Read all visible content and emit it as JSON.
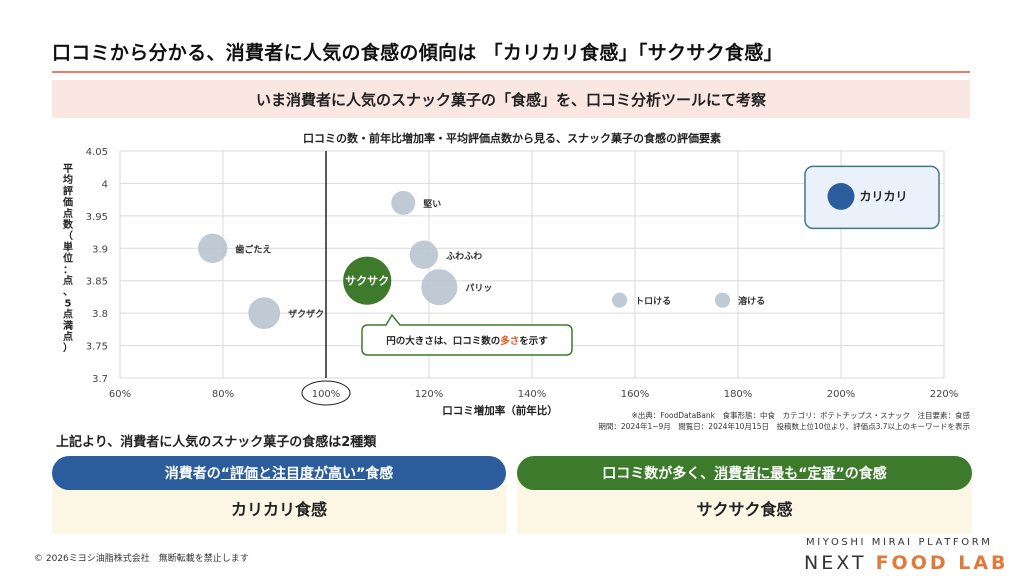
{
  "header": {
    "title": "口コミから分かる、消費者に人気の食感の傾向は 「カリカリ食感」「サクサク食感」",
    "banner": "いま消費者に人気のスナック菓子の「食感」を、口コミ分析ツールにて考察"
  },
  "chart_data": {
    "type": "scatter",
    "title": "口コミの数・前年比増加率・平均評価点数から見る、スナック菓子の食感の評価要素",
    "xlabel": "口コミ増加率（前年比）",
    "ylabel": "平均評価点数（単位：点、5点満点）",
    "xlim": [
      60,
      220
    ],
    "ylim": [
      3.7,
      4.05
    ],
    "xticks": [
      "60%",
      "80%",
      "100%",
      "120%",
      "140%",
      "160%",
      "180%",
      "200%",
      "220%"
    ],
    "yticks": [
      "3.7",
      "3.75",
      "3.8",
      "3.85",
      "3.9",
      "3.95",
      "4",
      "4.05"
    ],
    "grid": true,
    "reference_line_x": 100,
    "points": [
      {
        "label": "歯ごたえ",
        "x": 78,
        "y": 3.9,
        "size": 3,
        "color": "#bcc7d2"
      },
      {
        "label": "ザクザク",
        "x": 88,
        "y": 3.8,
        "size": 3.5,
        "color": "#bcc7d2"
      },
      {
        "label": "サクサク",
        "x": 108,
        "y": 3.85,
        "size": 8,
        "color": "#3d7a2b"
      },
      {
        "label": "堅い",
        "x": 115,
        "y": 3.97,
        "size": 2,
        "color": "#bcc7d2"
      },
      {
        "label": "ふわふわ",
        "x": 119,
        "y": 3.89,
        "size": 2.8,
        "color": "#bcc7d2"
      },
      {
        "label": "パリッ",
        "x": 122,
        "y": 3.84,
        "size": 4.5,
        "color": "#bcc7d2"
      },
      {
        "label": "トロける",
        "x": 157,
        "y": 3.82,
        "size": 0.8,
        "color": "#bcc7d2"
      },
      {
        "label": "溶ける",
        "x": 177,
        "y": 3.82,
        "size": 0.8,
        "color": "#bcc7d2"
      },
      {
        "label": "カリカリ",
        "x": 200,
        "y": 3.98,
        "size": 2.5,
        "color": "#2b5d9c"
      }
    ],
    "annotation": {
      "before": "円の大きさは、口コミ数の",
      "highlight": "多さ",
      "after": "を示す"
    }
  },
  "source": {
    "line1": "※出典：FoodDataBank　食事形態：中食　カテゴリ：ポテトチップス・スナック　注目要素：食感",
    "line2": "期間：2024年1~9月　閲覧日：2024年10月15日　投稿数上位10位より、評価点3.7以上のキーワードを表示"
  },
  "conclusion": "上記より、消費者に人気のスナック菓子の食感は2種類",
  "cards": {
    "left": {
      "head_before": "消費者の",
      "head_em": "“評価と注目度が高い”",
      "head_after": "食感",
      "body": "カリカリ食感"
    },
    "right": {
      "head_before": "口コミ数が多く、",
      "head_em": "消費者に最も“定番”",
      "head_after": "の食感",
      "body": "サクサク食感"
    }
  },
  "footer": {
    "copyright": "© 2026ミヨシ油脂株式会社　無断転載を禁止します",
    "brand_line1": "MIYOSHI MIRAI PLATFORM",
    "brand_next": "NEXT",
    "brand_food_lab": "FOOD LAB"
  },
  "colors": {
    "accent": "#e8805f",
    "blue": "#2b5d9c",
    "green": "#3d7a2b",
    "bubble": "#bcc7d2",
    "highlight": "#e05a1f"
  }
}
